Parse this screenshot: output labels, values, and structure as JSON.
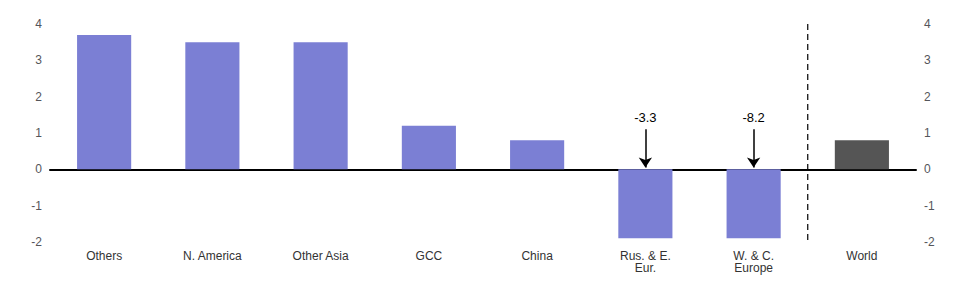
{
  "chart_data": {
    "type": "bar",
    "categories": [
      "Others",
      "N. America",
      "Other Asia",
      "GCC",
      "China",
      "Rus. & E.\nEur.",
      "W. & C.\nEurope",
      "World"
    ],
    "values": [
      3.7,
      3.5,
      3.5,
      1.2,
      0.8,
      -1.9,
      -1.9,
      0.8
    ],
    "colors": [
      "#7B7FD4",
      "#7B7FD4",
      "#7B7FD4",
      "#7B7FD4",
      "#7B7FD4",
      "#7B7FD4",
      "#7B7FD4",
      "#555555"
    ],
    "ylim": [
      -2,
      4
    ],
    "yticks": [
      -2,
      -1,
      0,
      1,
      2,
      3,
      4
    ],
    "y2lim": [
      -2,
      4
    ],
    "y2ticks": [
      -2,
      -1,
      0,
      1,
      2,
      3,
      4
    ],
    "grid": false,
    "annotations": [
      {
        "text": "-3.3",
        "category": "Rus. & E.\nEur.",
        "y": 1.1,
        "arrow_y": 0.05
      },
      {
        "text": "-8.2",
        "category": "W. & C.\nEurope",
        "y": 1.1,
        "arrow_y": 0.05
      }
    ],
    "vline": {
      "after": "W. & C.\nEurope",
      "line_style": "dashed"
    }
  }
}
